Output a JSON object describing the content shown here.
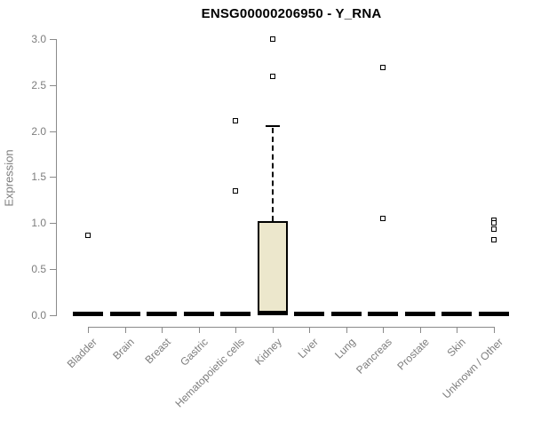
{
  "window": {
    "title": "ENSG00000206950 - Y_RNA"
  },
  "chart_data": {
    "type": "boxplot",
    "title": "ENSG00000206950 - Y_RNA",
    "xlabel": "",
    "ylabel": "Expression",
    "ylim": [
      0.0,
      3.0
    ],
    "yticks": [
      0.0,
      0.5,
      1.0,
      1.5,
      2.0,
      2.5,
      3.0
    ],
    "grid": false,
    "legend": null,
    "categories": [
      "Bladder",
      "Brain",
      "Breast",
      "Gastric",
      "Hematopoietic cells",
      "Kidney",
      "Liver",
      "Lung",
      "Pancreas",
      "Prostate",
      "Skin",
      "Unknown / Other"
    ],
    "boxes": [
      {
        "category": "Bladder",
        "median": 0.01,
        "q1": 0.0,
        "q3": 0.02,
        "whisker_low": 0.0,
        "whisker_high": 0.02,
        "outliers": [
          0.87
        ]
      },
      {
        "category": "Brain",
        "median": 0.01,
        "q1": 0.0,
        "q3": 0.02,
        "whisker_low": 0.0,
        "whisker_high": 0.02,
        "outliers": []
      },
      {
        "category": "Breast",
        "median": 0.01,
        "q1": 0.0,
        "q3": 0.02,
        "whisker_low": 0.0,
        "whisker_high": 0.02,
        "outliers": []
      },
      {
        "category": "Gastric",
        "median": 0.01,
        "q1": 0.0,
        "q3": 0.02,
        "whisker_low": 0.0,
        "whisker_high": 0.02,
        "outliers": []
      },
      {
        "category": "Hematopoietic cells",
        "median": 0.01,
        "q1": 0.0,
        "q3": 0.02,
        "whisker_low": 0.0,
        "whisker_high": 0.02,
        "outliers": [
          2.11,
          1.35
        ]
      },
      {
        "category": "Kidney",
        "median": 0.02,
        "q1": 0.02,
        "q3": 1.02,
        "whisker_low": 0.02,
        "whisker_high": 2.05,
        "outliers": [
          3.0,
          2.59
        ]
      },
      {
        "category": "Liver",
        "median": 0.01,
        "q1": 0.0,
        "q3": 0.02,
        "whisker_low": 0.0,
        "whisker_high": 0.02,
        "outliers": []
      },
      {
        "category": "Lung",
        "median": 0.01,
        "q1": 0.0,
        "q3": 0.02,
        "whisker_low": 0.0,
        "whisker_high": 0.02,
        "outliers": []
      },
      {
        "category": "Pancreas",
        "median": 0.01,
        "q1": 0.0,
        "q3": 0.02,
        "whisker_low": 0.0,
        "whisker_high": 0.02,
        "outliers": [
          2.69,
          1.05
        ]
      },
      {
        "category": "Prostate",
        "median": 0.01,
        "q1": 0.0,
        "q3": 0.02,
        "whisker_low": 0.0,
        "whisker_high": 0.02,
        "outliers": []
      },
      {
        "category": "Skin",
        "median": 0.01,
        "q1": 0.0,
        "q3": 0.02,
        "whisker_low": 0.0,
        "whisker_high": 0.02,
        "outliers": []
      },
      {
        "category": "Unknown / Other",
        "median": 0.01,
        "q1": 0.0,
        "q3": 0.02,
        "whisker_low": 0.0,
        "whisker_high": 0.02,
        "outliers": [
          1.03,
          1.0,
          0.94,
          0.82
        ]
      }
    ],
    "colors": {
      "box_fill": "#ece7cc",
      "box_border": "#000000",
      "median": "#000000",
      "whisker": "#000000",
      "outlier": "#000000",
      "axis": "#8a8a8a",
      "tick_label": "#7d7d7d",
      "title": "#000000",
      "background": "#ffffff"
    }
  }
}
